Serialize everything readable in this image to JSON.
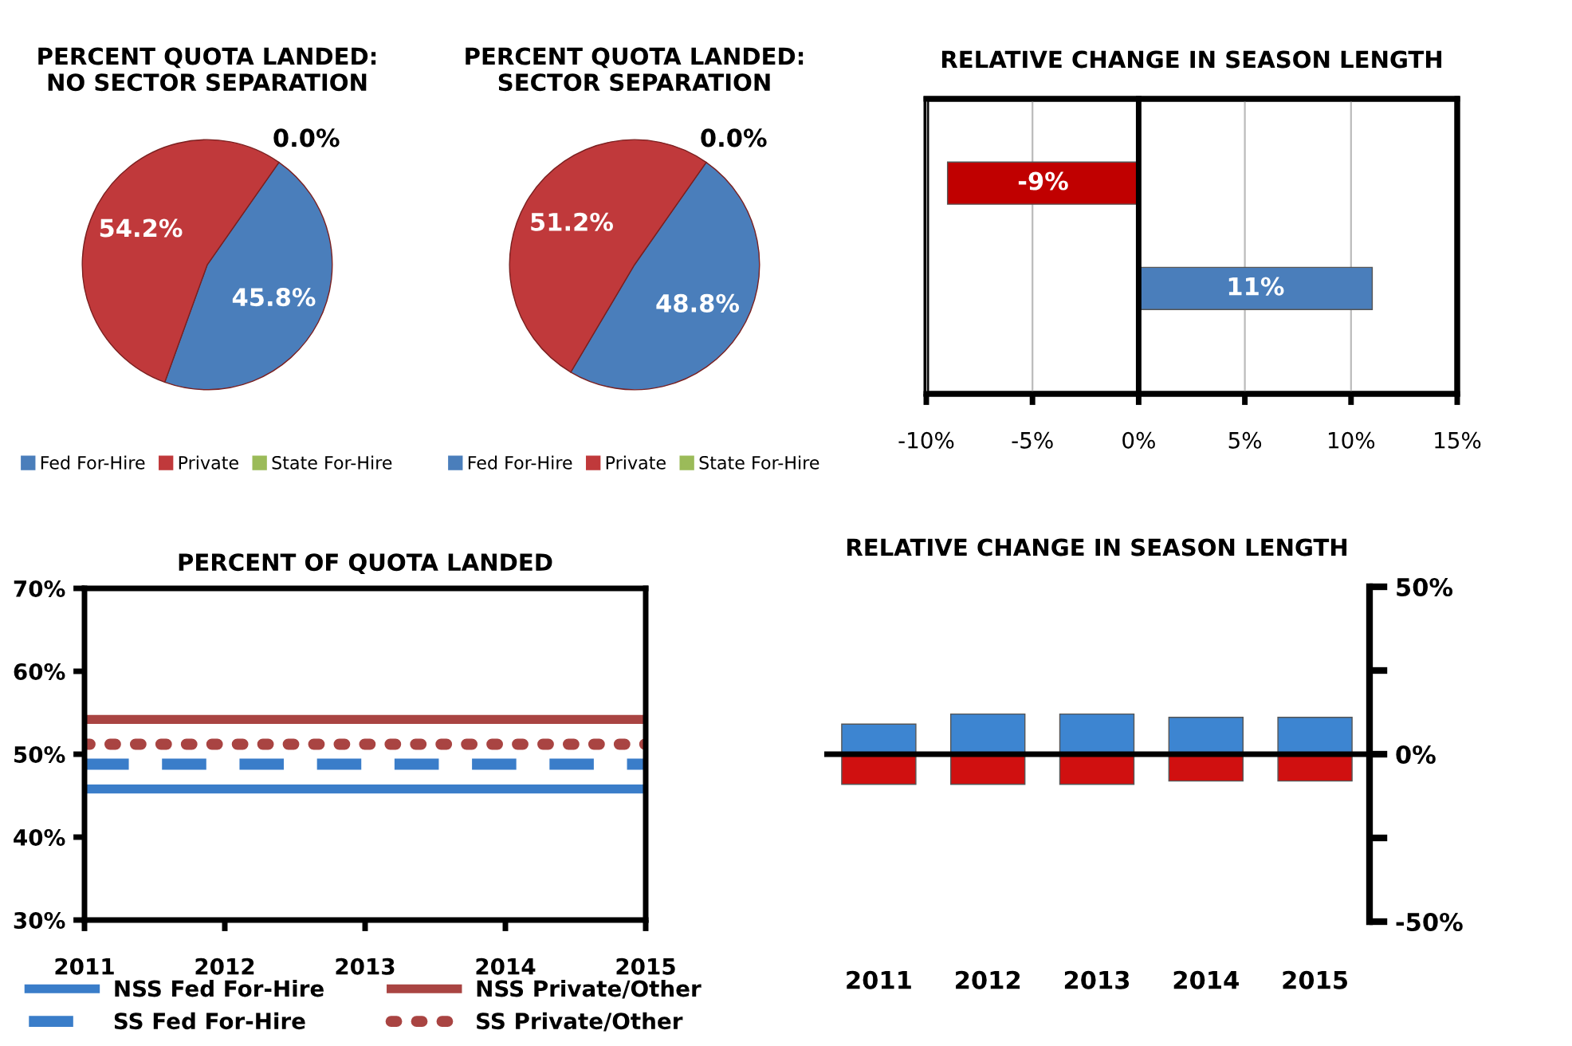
{
  "chart_data": [
    {
      "type": "pie",
      "title": "PERCENT QUOTA LANDED:\nNO SECTOR SEPARATION",
      "categories": [
        "Fed For-Hire",
        "Private",
        "State For-Hire"
      ],
      "values": [
        45.8,
        54.2,
        0.0
      ],
      "colors": [
        "#4a7ebb",
        "#c0393b",
        "#9bbb59"
      ],
      "value_labels": [
        "45.8%",
        "54.2%",
        "0.0%"
      ],
      "legend": "bottom"
    },
    {
      "type": "pie",
      "title": "PERCENT QUOTA LANDED:\nSECTOR SEPARATION",
      "categories": [
        "Fed For-Hire",
        "Private",
        "State For-Hire"
      ],
      "values": [
        48.8,
        51.2,
        0.0
      ],
      "colors": [
        "#4a7ebb",
        "#c0393b",
        "#9bbb59"
      ],
      "value_labels": [
        "48.8%",
        "51.2%",
        "0.0%"
      ],
      "legend": "bottom"
    },
    {
      "type": "bar",
      "orientation": "horizontal",
      "title": "RELATIVE CHANGE IN SEASON LENGTH",
      "categories": [
        null,
        null
      ],
      "values": [
        -9,
        11
      ],
      "colors": [
        "#c00000",
        "#4a7ebb"
      ],
      "value_labels": [
        "-9%",
        "11%"
      ],
      "xlim": [
        -10,
        15
      ],
      "xticks": [
        {
          "value": -10,
          "label": "-10%"
        },
        {
          "value": -5,
          "label": "-5%"
        },
        {
          "value": 0,
          "label": "0%"
        },
        {
          "value": 5,
          "label": "5%"
        },
        {
          "value": 10,
          "label": "10%"
        },
        {
          "value": 15,
          "label": "15%"
        }
      ],
      "grid": "x"
    },
    {
      "type": "line",
      "title": "PERCENT OF QUOTA LANDED",
      "categories": [
        "2011",
        "2012",
        "2013",
        "2014",
        "2015"
      ],
      "ylim": [
        30,
        70
      ],
      "yticks": [
        {
          "value": 30,
          "label": "30%"
        },
        {
          "value": 40,
          "label": "40%"
        },
        {
          "value": 50,
          "label": "50%"
        },
        {
          "value": 60,
          "label": "60%"
        },
        {
          "value": 70,
          "label": "70%"
        }
      ],
      "legend": "bottom",
      "series": [
        {
          "name": "NSS Fed For-Hire",
          "color": "#3a7dc9",
          "line_style": "solid",
          "values": [
            45.8,
            45.8,
            45.8,
            45.8,
            45.8
          ]
        },
        {
          "name": "NSS Private/Other",
          "color": "#a94442",
          "line_style": "solid",
          "values": [
            54.2,
            54.2,
            54.2,
            54.2,
            54.2
          ]
        },
        {
          "name": "SS Fed For-Hire",
          "color": "#3a7dc9",
          "line_style": "dashed",
          "values": [
            48.8,
            48.8,
            48.8,
            48.8,
            48.8
          ]
        },
        {
          "name": "SS Private/Other",
          "color": "#a94442",
          "line_style": "dotted",
          "values": [
            51.2,
            51.2,
            51.2,
            51.2,
            51.2
          ]
        }
      ]
    },
    {
      "type": "bar",
      "stacked": true,
      "title": "RELATIVE CHANGE IN SEASON LENGTH",
      "categories": [
        "2011",
        "2012",
        "2013",
        "2014",
        "2015"
      ],
      "ylim": [
        -50,
        50
      ],
      "yticks": [
        {
          "value": -50,
          "label": "-50%"
        },
        {
          "value": -25,
          "label": null
        },
        {
          "value": 0,
          "label": "0%"
        },
        {
          "value": 25,
          "label": null
        },
        {
          "value": 50,
          "label": "50%"
        }
      ],
      "series": [
        {
          "color": "#3d85d1",
          "values": [
            9,
            12,
            12,
            11,
            11
          ]
        },
        {
          "color": "#d01010",
          "values": [
            -9,
            -9,
            -9,
            -8,
            -8
          ]
        }
      ]
    }
  ]
}
